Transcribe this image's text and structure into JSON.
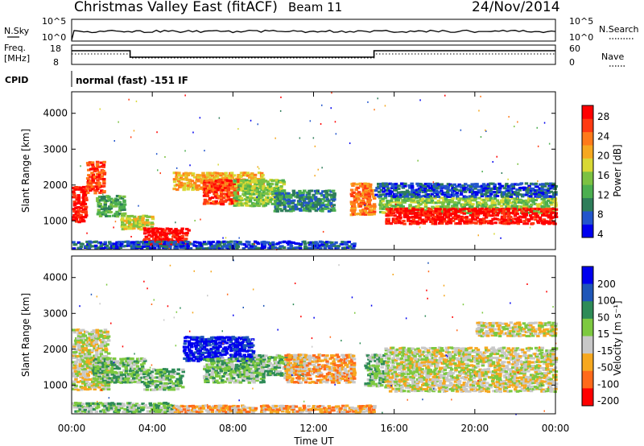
{
  "header": {
    "title": "Christmas Valley East (fitACF)",
    "beam": "Beam 11",
    "date": "24/Nov/2014"
  },
  "noise_panel": {
    "left_label": "N.Sky",
    "right_label": "N.Search",
    "left_ticks": [
      "10^5",
      "10^0"
    ],
    "right_ticks": [
      "10^5",
      "10^0"
    ]
  },
  "freq_panel": {
    "left_label_1": "Freq.",
    "left_label_2": "[MHz]",
    "right_label": "Nave",
    "left_ticks": [
      "18",
      "8"
    ],
    "right_ticks": [
      "60",
      "0"
    ]
  },
  "cpid": {
    "label": "CPID",
    "text": "normal (fast) -151 IF"
  },
  "chart_data": [
    {
      "type": "heatmap",
      "name": "power",
      "ylabel": "Slant Range [km]",
      "yticks": [
        1000,
        2000,
        3000,
        4000
      ],
      "ylim": [
        200,
        4600
      ],
      "colorbar_label": "Power [dB]",
      "colorbar_ticks": [
        "28",
        "24",
        "20",
        "16",
        "12",
        "8",
        "4"
      ],
      "colors": [
        "#0000ee",
        "#2255cc",
        "#2e7d5a",
        "#4caf50",
        "#7cc242",
        "#d8d834",
        "#f6a820",
        "#ff7a1a",
        "#ff3a12",
        "#ff0000"
      ],
      "blobs": [
        {
          "t0": 0.0,
          "t1": 0.7,
          "r0": 1000,
          "r1": 2000,
          "v": 9
        },
        {
          "t0": 0.7,
          "t1": 1.6,
          "r0": 1800,
          "r1": 2700,
          "v": 8
        },
        {
          "t0": 1.2,
          "t1": 2.6,
          "r0": 1150,
          "r1": 1750,
          "v": 3
        },
        {
          "t0": 2.4,
          "t1": 4.0,
          "r0": 800,
          "r1": 1200,
          "v": 5
        },
        {
          "t0": 3.5,
          "t1": 5.8,
          "r0": 350,
          "r1": 850,
          "v": 9
        },
        {
          "t0": 5.0,
          "t1": 9.5,
          "r0": 1900,
          "r1": 2400,
          "v": 6
        },
        {
          "t0": 6.5,
          "t1": 8.2,
          "r0": 1500,
          "r1": 2200,
          "v": 8
        },
        {
          "t0": 8.0,
          "t1": 10.5,
          "r0": 1450,
          "r1": 2200,
          "v": 4
        },
        {
          "t0": 10.0,
          "t1": 13.0,
          "r0": 1300,
          "r1": 1900,
          "v": 2
        },
        {
          "t0": 0.0,
          "t1": 14.0,
          "r0": 260,
          "r1": 480,
          "v": 1
        },
        {
          "t0": 13.8,
          "t1": 15.0,
          "r0": 1200,
          "r1": 2100,
          "v": 7
        },
        {
          "t0": 15.2,
          "t1": 24.0,
          "r0": 1250,
          "r1": 1700,
          "v": 4
        },
        {
          "t0": 15.5,
          "t1": 24.0,
          "r0": 950,
          "r1": 1400,
          "v": 9
        },
        {
          "t0": 15.0,
          "t1": 24.0,
          "r0": 1700,
          "r1": 2100,
          "v": 1
        }
      ]
    },
    {
      "type": "heatmap",
      "name": "velocity",
      "ylabel": "Slant Range [km]",
      "xlabel": "Time UT",
      "xticks": [
        "00:00",
        "04:00",
        "08:00",
        "12:00",
        "16:00",
        "20:00",
        "00:00"
      ],
      "yticks": [
        1000,
        2000,
        3000,
        4000
      ],
      "ylim": [
        200,
        4600
      ],
      "colorbar_label": "Velocity [m s⁻¹]",
      "colorbar_ticks": [
        "200",
        "100",
        "50",
        "15",
        "-15",
        "-50",
        "-100",
        "-200"
      ],
      "colors": [
        "#0000ee",
        "#1f56b8",
        "#2e8b57",
        "#7dc940",
        "#c8c8c8",
        "#f6a820",
        "#ff6a1a",
        "#ff0000"
      ],
      "blobs": [
        {
          "t0": 0.0,
          "t1": 1.8,
          "r0": 900,
          "r1": 2600,
          "v": 4
        },
        {
          "t0": 1.0,
          "t1": 3.6,
          "r0": 1100,
          "r1": 1800,
          "v": 3
        },
        {
          "t0": 3.5,
          "t1": 5.5,
          "r0": 900,
          "r1": 1500,
          "v": 3
        },
        {
          "t0": 5.5,
          "t1": 9.0,
          "r0": 1700,
          "r1": 2400,
          "v": 0
        },
        {
          "t0": 6.5,
          "t1": 9.5,
          "r0": 1100,
          "r1": 1800,
          "v": 3
        },
        {
          "t0": 9.0,
          "t1": 11.5,
          "r0": 1300,
          "r1": 1900,
          "v": 3
        },
        {
          "t0": 10.5,
          "t1": 14.0,
          "r0": 1100,
          "r1": 1900,
          "v": 5
        },
        {
          "t0": 0.0,
          "t1": 5.0,
          "r0": 280,
          "r1": 560,
          "v": 3
        },
        {
          "t0": 5.0,
          "t1": 15.0,
          "r0": 280,
          "r1": 480,
          "v": 5
        },
        {
          "t0": 14.5,
          "t1": 15.5,
          "r0": 1000,
          "r1": 1900,
          "v": 3
        },
        {
          "t0": 15.5,
          "t1": 24.0,
          "r0": 850,
          "r1": 2100,
          "v": 4
        },
        {
          "t0": 20.0,
          "t1": 24.0,
          "r0": 2400,
          "r1": 2800,
          "v": 4
        }
      ]
    }
  ]
}
